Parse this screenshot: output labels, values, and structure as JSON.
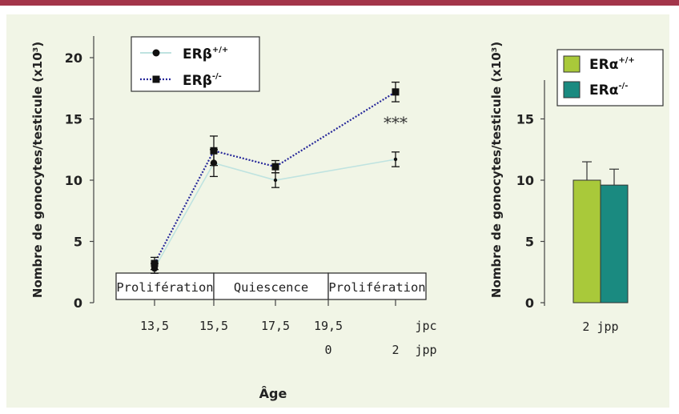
{
  "colors": {
    "top_bar": "#a3354a",
    "panel_bg": "#f1f5e6",
    "wt_line": "#bfe3e0",
    "ko_line": "#27289a",
    "era_wt_bar": "#a9c93a",
    "era_ko_bar": "#1a8a80"
  },
  "chart_data": [
    {
      "type": "line",
      "ylabel": "Nombre de gonocytes/testicule (x10³)",
      "xlabel": "Âge",
      "ylim": [
        0,
        21
      ],
      "yticks": [
        "0",
        "5",
        "10",
        "15",
        "20"
      ],
      "x_ticks_jpc": [
        "13,5",
        "15,5",
        "17,5",
        "19,5"
      ],
      "x_unit_jpc": "jpc",
      "x_ticks_jpp": [
        "0",
        "2"
      ],
      "x_unit_jpp": "jpp",
      "x_order": [
        "13,5 jpc",
        "15,5 jpc",
        "17,5 jpc",
        "19,5 jpc / 0 jpp",
        "2 jpp"
      ],
      "phases": [
        "Prolifération",
        "Quiescence",
        "Prolifération"
      ],
      "series": [
        {
          "name": "ERβ+/+",
          "legend_base": "ERβ",
          "legend_sup": "+/+",
          "x": [
            "13,5",
            "15,5",
            "17,5",
            "2 jpp"
          ],
          "values": [
            2.8,
            11.4,
            10.0,
            11.7
          ],
          "errors": [
            0.4,
            1.1,
            0.6,
            0.6
          ]
        },
        {
          "name": "ERβ-/-",
          "legend_base": "ERβ",
          "legend_sup": "-/-",
          "x": [
            "13,5",
            "15,5",
            "17,5",
            "2 jpp"
          ],
          "values": [
            3.2,
            12.4,
            11.1,
            17.2
          ],
          "errors": [
            0.5,
            1.2,
            0.5,
            0.8
          ]
        }
      ],
      "annotations": [
        "***"
      ]
    },
    {
      "type": "bar",
      "ylabel": "Nombre de gonocytes/testicule (x10³)",
      "categories": [
        "2 jpp"
      ],
      "ylim": [
        0,
        17.5
      ],
      "yticks": [
        "0",
        "5",
        "10",
        "15"
      ],
      "series": [
        {
          "name": "ERα+/+",
          "legend_base": "ERα",
          "legend_sup": "+/+",
          "values": [
            10.0
          ],
          "errors": [
            1.5
          ]
        },
        {
          "name": "ERα-/-",
          "legend_base": "ERα",
          "legend_sup": "-/-",
          "values": [
            9.6
          ],
          "errors": [
            1.3
          ]
        }
      ]
    }
  ]
}
